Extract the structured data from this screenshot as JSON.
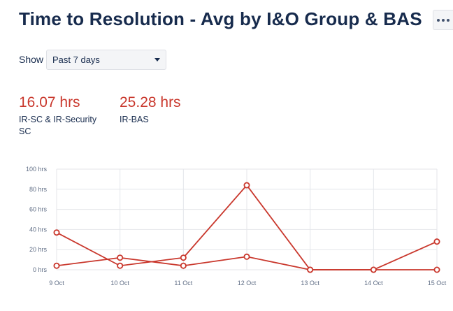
{
  "header": {
    "title": "Time to Resolution - Avg by I&O Group & BAS"
  },
  "filter": {
    "label": "Show",
    "selected": "Past 7 days"
  },
  "metrics": [
    {
      "value": "16.07 hrs",
      "label": "IR-SC & IR-Security SC"
    },
    {
      "value": "25.28 hrs",
      "label": "IR-BAS"
    }
  ],
  "colors": {
    "accent": "#c9372c",
    "grid": "#e4e6ea",
    "text": "#172b4d"
  },
  "chart_data": {
    "type": "line",
    "categories": [
      "9 Oct",
      "10 Oct",
      "11 Oct",
      "12 Oct",
      "13 Oct",
      "14 Oct",
      "15 Oct"
    ],
    "yticks": [
      "0 hrs",
      "20 hrs",
      "40 hrs",
      "60 hrs",
      "80 hrs",
      "100 hrs"
    ],
    "ylim": [
      0,
      100
    ],
    "grid": true,
    "series": [
      {
        "values": [
          37,
          4,
          12,
          84,
          0,
          0,
          28
        ]
      },
      {
        "values": [
          4,
          12,
          4,
          13,
          0,
          0,
          0
        ]
      }
    ]
  }
}
